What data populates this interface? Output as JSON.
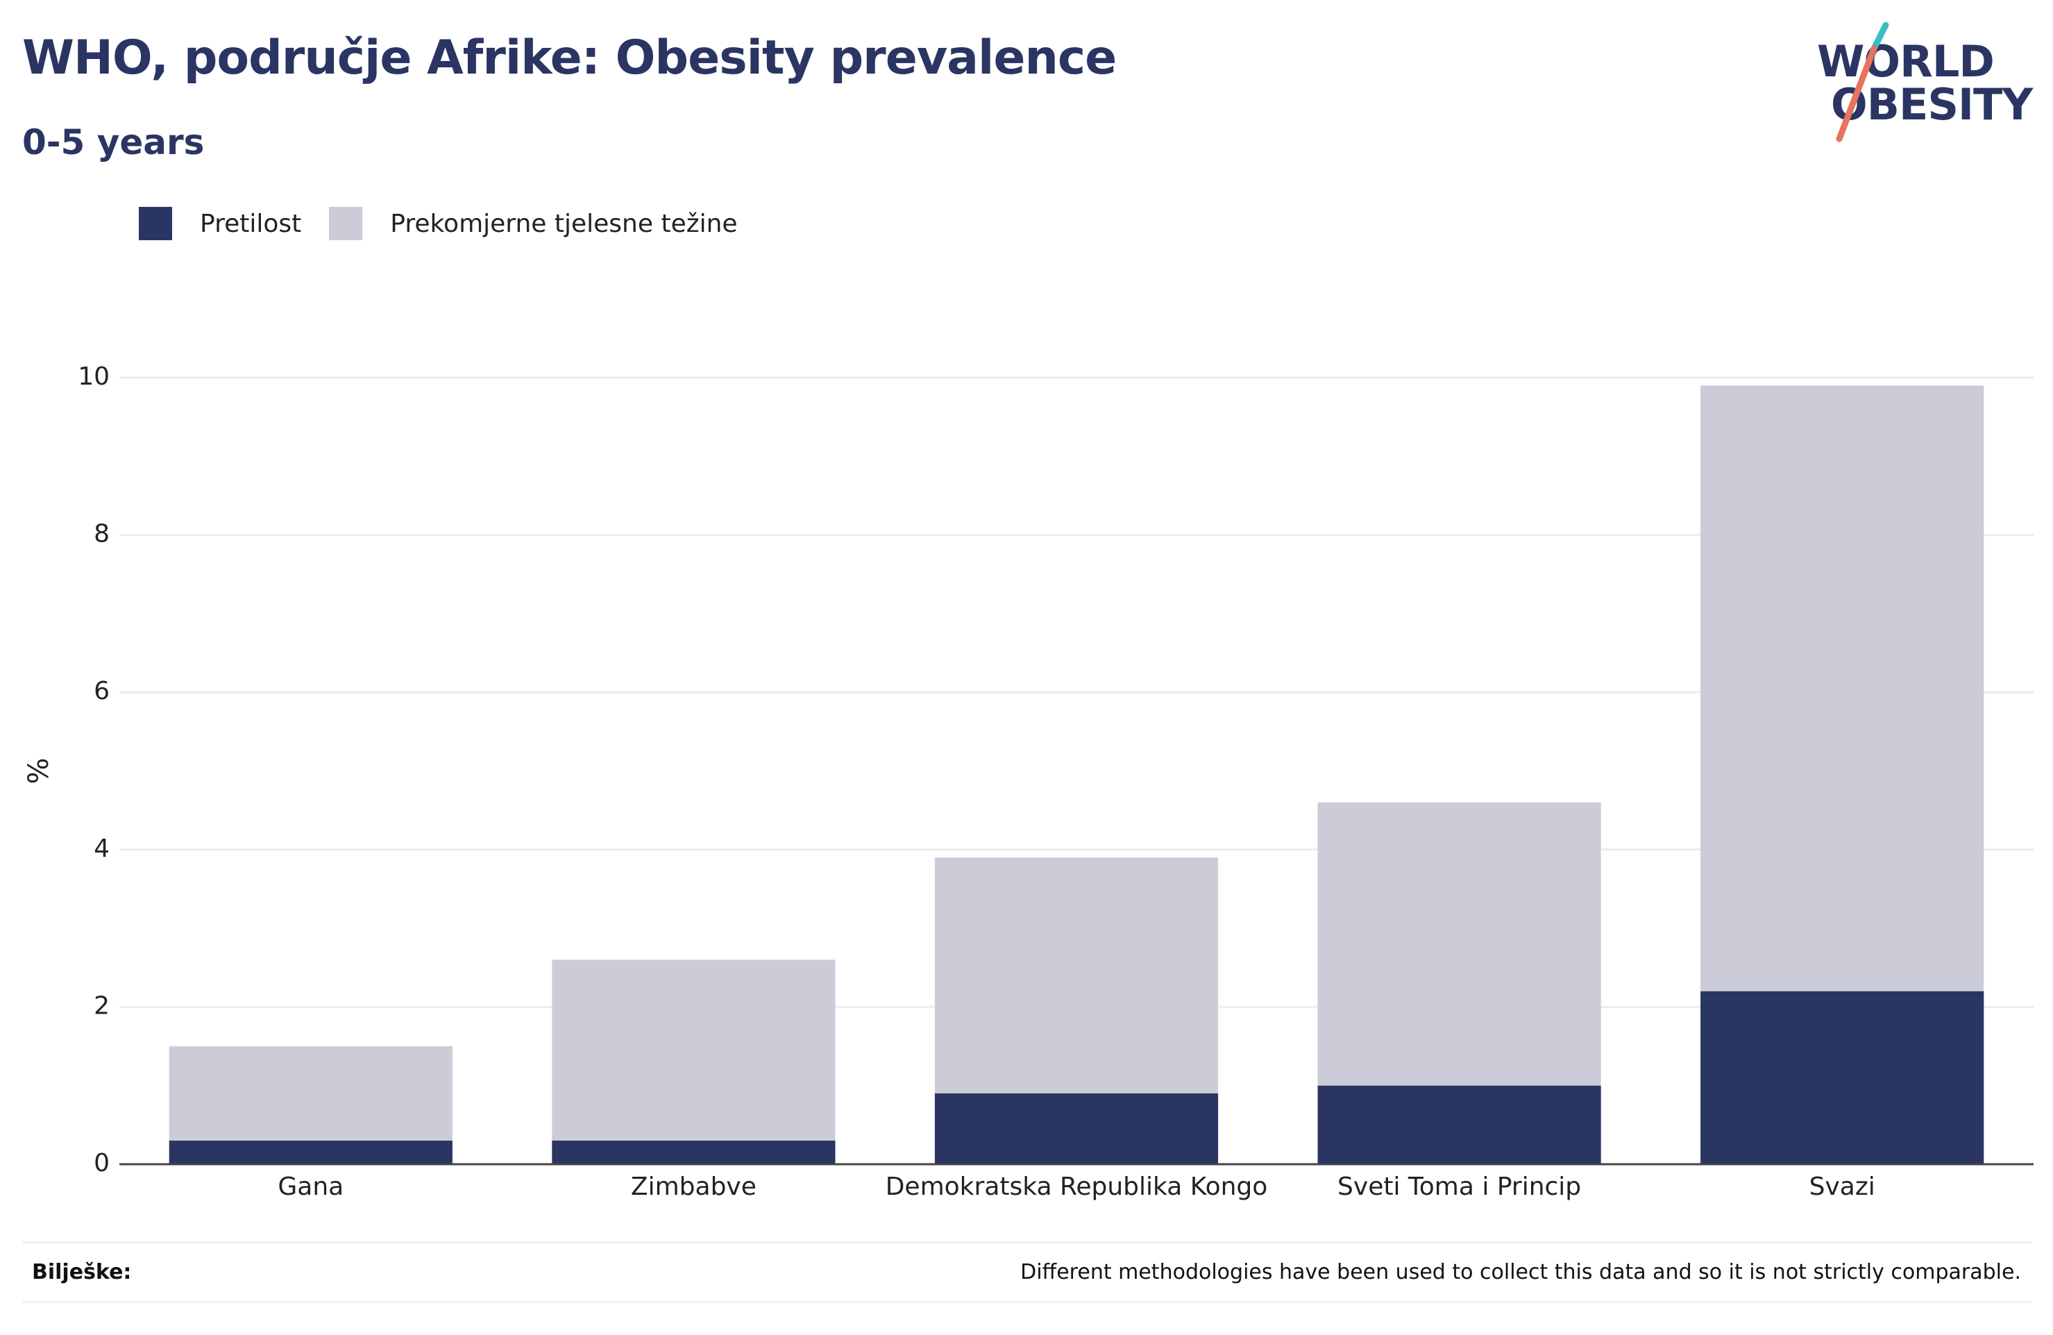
{
  "header": {
    "title": "WHO, područje Afrike: Obesity prevalence",
    "subtitle": "0-5 years"
  },
  "logo": {
    "line1": "WORLD",
    "line2": "OBESITY",
    "colors": {
      "text": "#2a3563",
      "slash_top": "#3dbcc3",
      "slash_bottom": "#e8735e"
    }
  },
  "legend": [
    {
      "label": "Pretilost",
      "color": "#2a3563"
    },
    {
      "label": "Prekomjerne tjelesne težine",
      "color": "#cbccd8"
    }
  ],
  "chart_data": {
    "type": "bar",
    "stacked": true,
    "categories": [
      "Gana",
      "Zimbabve",
      "Demokratska Republika Kongo",
      "Sveti Toma i Princip",
      "Svazi"
    ],
    "series": [
      {
        "name": "Pretilost",
        "color": "#2a3563",
        "values": [
          0.3,
          0.3,
          0.9,
          1.0,
          2.2
        ]
      },
      {
        "name": "Prekomjerne tjelesne težine",
        "color": "#cbccd8",
        "values": [
          1.2,
          2.3,
          3.0,
          3.6,
          7.7
        ]
      }
    ],
    "ylabel": "%",
    "xlabel": "",
    "ylim": [
      0,
      10
    ],
    "yticks": [
      0,
      2,
      4,
      6,
      8,
      10
    ],
    "grid": true,
    "legend_position": "top-left"
  },
  "footer": {
    "notes_label": "Bilješke:",
    "notes_text": "Different methodologies have been used to collect this data and so it is not strictly comparable."
  }
}
